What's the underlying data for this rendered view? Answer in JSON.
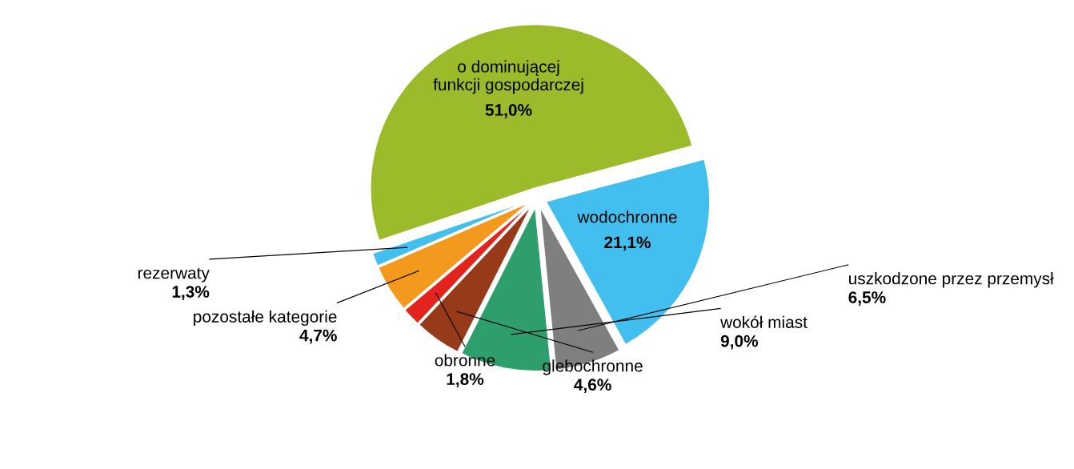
{
  "chart_data": {
    "type": "pie",
    "categories": [
      "wodochronne",
      "uszkodzone przez przemysł",
      "wokół miast",
      "glebochronne",
      "obronne",
      "pozostałe kategorie",
      "rezerwaty",
      "o dominującej funkcji gospodarczej"
    ],
    "values": [
      21.1,
      6.5,
      9.0,
      4.6,
      1.8,
      4.7,
      1.3,
      51.0
    ],
    "value_labels": [
      "21,1%",
      "6,5%",
      "9,0%",
      "4,6%",
      "1,8%",
      "4,7%",
      "1,3%",
      "51,0%"
    ],
    "colors": [
      "#43bfef",
      "#7f7f80",
      "#2e9e6c",
      "#963a19",
      "#e2241c",
      "#f39a1e",
      "#43bfef",
      "#9bbb2a"
    ],
    "legend": false
  }
}
